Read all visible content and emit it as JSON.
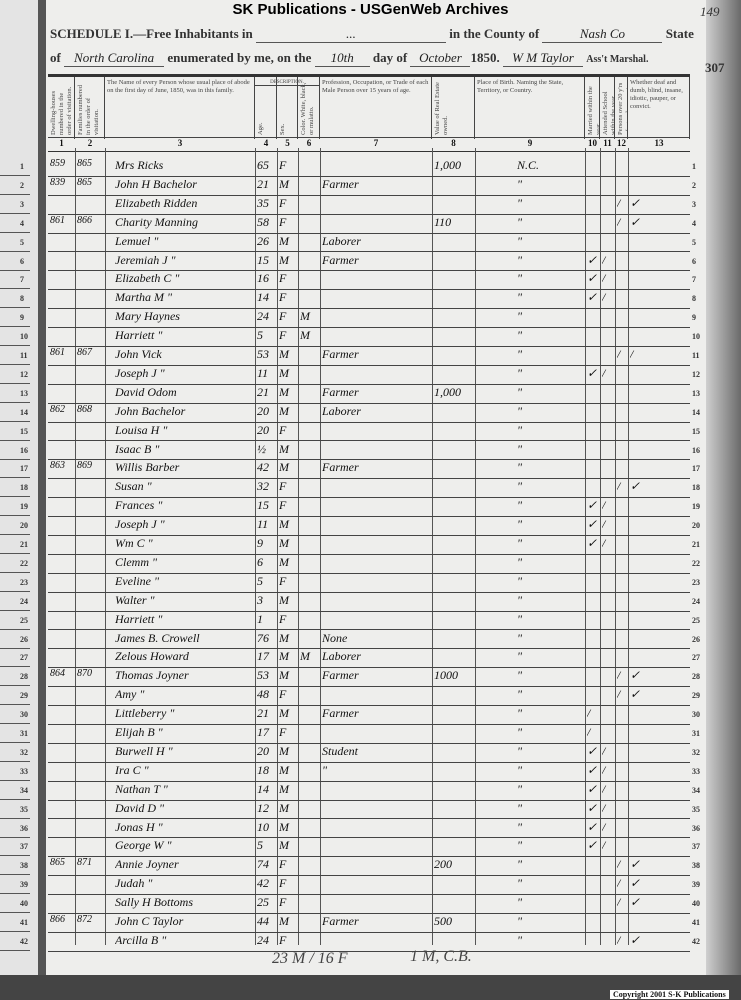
{
  "banner": "SK Publications - USGenWeb Archives",
  "schedule": {
    "title": "SCHEDULE I.—Free Inhabitants in",
    "place": "...",
    "county_label": "in the County of",
    "county": "Nash Co",
    "state_label": "State",
    "of_label": "of",
    "state": "North Carolina",
    "enumerated_label": "enumerated by me, on the",
    "day": "10th",
    "day_label": "day of",
    "month": "October",
    "year": "1850.",
    "marshal": "W M Taylor",
    "marshal_label": "Ass't Marshal.",
    "page_top": "149",
    "page_right": "307"
  },
  "columns": [
    {
      "num": "1",
      "header": "Dwelling-houses numbered in the order of visitation."
    },
    {
      "num": "2",
      "header": "Families numbered in the order of visitation."
    },
    {
      "num": "3",
      "header": "The Name of every Person whose usual place of abode on the first day of June, 1850, was in this family."
    },
    {
      "num": "4",
      "header": "Age."
    },
    {
      "num": "5",
      "header": "Sex."
    },
    {
      "num": "6",
      "header": "Color. White, black, or mulatto."
    },
    {
      "num": "7",
      "header": "Profession, Occupation, or Trade of each Male Person over 15 years of age."
    },
    {
      "num": "8",
      "header": "Value of Real Estate owned."
    },
    {
      "num": "9",
      "header": "Place of Birth. Naming the State, Territory, or Country."
    },
    {
      "num": "10",
      "header": "Married within the year."
    },
    {
      "num": "11",
      "header": "Attended School within the year."
    },
    {
      "num": "12",
      "header": "Persons over 20 y'rs of age who cannot read & write."
    },
    {
      "num": "13",
      "header": "Whether deaf and dumb, blind, insane, idiotic, pauper, or convict."
    }
  ],
  "description_label": "DESCRIPTION.",
  "rows": [
    {
      "n": "1",
      "dw": "859",
      "fam": "865",
      "name": "Mrs Ricks",
      "age": "65",
      "sex": "F",
      "color": "",
      "occ": "",
      "value": "1,000",
      "birth": "N.C.",
      "married": "",
      "school": "",
      "read": "",
      "deaf": ""
    },
    {
      "n": "2",
      "dw": "839",
      "fam": "865",
      "name": "John H Bachelor",
      "age": "21",
      "sex": "M",
      "color": "",
      "occ": "Farmer",
      "value": "",
      "birth": "\"",
      "married": "",
      "school": "",
      "read": "",
      "deaf": ""
    },
    {
      "n": "3",
      "dw": "",
      "fam": "",
      "name": "Elizabeth Ridden",
      "age": "35",
      "sex": "F",
      "color": "",
      "occ": "",
      "value": "",
      "birth": "\"",
      "married": "",
      "school": "",
      "read": "/",
      "deaf": "✓"
    },
    {
      "n": "4",
      "dw": "861",
      "fam": "866",
      "name": "Charity Manning",
      "age": "58",
      "sex": "F",
      "color": "",
      "occ": "",
      "value": "110",
      "birth": "\"",
      "married": "",
      "school": "",
      "read": "/",
      "deaf": "✓"
    },
    {
      "n": "5",
      "dw": "",
      "fam": "",
      "name": "Lemuel   \"",
      "age": "26",
      "sex": "M",
      "color": "",
      "occ": "Laborer",
      "value": "",
      "birth": "\"",
      "married": "",
      "school": "",
      "read": "",
      "deaf": ""
    },
    {
      "n": "6",
      "dw": "",
      "fam": "",
      "name": "Jeremiah J  \"",
      "age": "15",
      "sex": "M",
      "color": "",
      "occ": "Farmer",
      "value": "",
      "birth": "\"",
      "married": "✓",
      "school": "/",
      "read": "",
      "deaf": ""
    },
    {
      "n": "7",
      "dw": "",
      "fam": "",
      "name": "Elizabeth C  \"",
      "age": "16",
      "sex": "F",
      "color": "",
      "occ": "",
      "value": "",
      "birth": "\"",
      "married": "✓",
      "school": "/",
      "read": "",
      "deaf": ""
    },
    {
      "n": "8",
      "dw": "",
      "fam": "",
      "name": "Martha M  \"",
      "age": "14",
      "sex": "F",
      "color": "",
      "occ": "",
      "value": "",
      "birth": "\"",
      "married": "✓",
      "school": "/",
      "read": "",
      "deaf": ""
    },
    {
      "n": "9",
      "dw": "",
      "fam": "",
      "name": "Mary Haynes",
      "age": "24",
      "sex": "F",
      "color": "M",
      "occ": "",
      "value": "",
      "birth": "\"",
      "married": "",
      "school": "",
      "read": "",
      "deaf": ""
    },
    {
      "n": "10",
      "dw": "",
      "fam": "",
      "name": "Harriett  \"",
      "age": "5",
      "sex": "F",
      "color": "M",
      "occ": "",
      "value": "",
      "birth": "\"",
      "married": "",
      "school": "",
      "read": "",
      "deaf": ""
    },
    {
      "n": "11",
      "dw": "861",
      "fam": "867",
      "name": "John Vick",
      "age": "53",
      "sex": "M",
      "color": "",
      "occ": "Farmer",
      "value": "",
      "birth": "\"",
      "married": "",
      "school": "",
      "read": "/",
      "deaf": "/"
    },
    {
      "n": "12",
      "dw": "",
      "fam": "",
      "name": "Joseph J  \"",
      "age": "11",
      "sex": "M",
      "color": "",
      "occ": "",
      "value": "",
      "birth": "\"",
      "married": "✓",
      "school": "/",
      "read": "",
      "deaf": ""
    },
    {
      "n": "13",
      "dw": "",
      "fam": "",
      "name": "David Odom",
      "age": "21",
      "sex": "M",
      "color": "",
      "occ": "Farmer",
      "value": "1,000",
      "birth": "\"",
      "married": "",
      "school": "",
      "read": "",
      "deaf": ""
    },
    {
      "n": "14",
      "dw": "862",
      "fam": "868",
      "name": "John Bachelor",
      "age": "20",
      "sex": "M",
      "color": "",
      "occ": "Laborer",
      "value": "",
      "birth": "\"",
      "married": "",
      "school": "",
      "read": "",
      "deaf": ""
    },
    {
      "n": "15",
      "dw": "",
      "fam": "",
      "name": "Louisa H  \"",
      "age": "20",
      "sex": "F",
      "color": "",
      "occ": "",
      "value": "",
      "birth": "\"",
      "married": "",
      "school": "",
      "read": "",
      "deaf": ""
    },
    {
      "n": "16",
      "dw": "",
      "fam": "",
      "name": "Isaac B  \"",
      "age": "½",
      "sex": "M",
      "color": "",
      "occ": "",
      "value": "",
      "birth": "\"",
      "married": "",
      "school": "",
      "read": "",
      "deaf": ""
    },
    {
      "n": "17",
      "dw": "863",
      "fam": "869",
      "name": "Willis Barber",
      "age": "42",
      "sex": "M",
      "color": "",
      "occ": "Farmer",
      "value": "",
      "birth": "\"",
      "married": "",
      "school": "",
      "read": "",
      "deaf": ""
    },
    {
      "n": "18",
      "dw": "",
      "fam": "",
      "name": "Susan  \"",
      "age": "32",
      "sex": "F",
      "color": "",
      "occ": "",
      "value": "",
      "birth": "\"",
      "married": "",
      "school": "",
      "read": "/",
      "deaf": "✓"
    },
    {
      "n": "19",
      "dw": "",
      "fam": "",
      "name": "Frances  \"",
      "age": "15",
      "sex": "F",
      "color": "",
      "occ": "",
      "value": "",
      "birth": "\"",
      "married": "✓",
      "school": "/",
      "read": "",
      "deaf": ""
    },
    {
      "n": "20",
      "dw": "",
      "fam": "",
      "name": "Joseph J  \"",
      "age": "11",
      "sex": "M",
      "color": "",
      "occ": "",
      "value": "",
      "birth": "\"",
      "married": "✓",
      "school": "/",
      "read": "",
      "deaf": ""
    },
    {
      "n": "21",
      "dw": "",
      "fam": "",
      "name": "Wm C  \"",
      "age": "9",
      "sex": "M",
      "color": "",
      "occ": "",
      "value": "",
      "birth": "\"",
      "married": "✓",
      "school": "/",
      "read": "",
      "deaf": ""
    },
    {
      "n": "22",
      "dw": "",
      "fam": "",
      "name": "Clemm  \"",
      "age": "6",
      "sex": "M",
      "color": "",
      "occ": "",
      "value": "",
      "birth": "\"",
      "married": "",
      "school": "",
      "read": "",
      "deaf": ""
    },
    {
      "n": "23",
      "dw": "",
      "fam": "",
      "name": "Eveline  \"",
      "age": "5",
      "sex": "F",
      "color": "",
      "occ": "",
      "value": "",
      "birth": "\"",
      "married": "",
      "school": "",
      "read": "",
      "deaf": ""
    },
    {
      "n": "24",
      "dw": "",
      "fam": "",
      "name": "Walter  \"",
      "age": "3",
      "sex": "M",
      "color": "",
      "occ": "",
      "value": "",
      "birth": "\"",
      "married": "",
      "school": "",
      "read": "",
      "deaf": ""
    },
    {
      "n": "25",
      "dw": "",
      "fam": "",
      "name": "Harriett  \"",
      "age": "1",
      "sex": "F",
      "color": "",
      "occ": "",
      "value": "",
      "birth": "\"",
      "married": "",
      "school": "",
      "read": "",
      "deaf": ""
    },
    {
      "n": "26",
      "dw": "",
      "fam": "",
      "name": "James B. Crowell",
      "age": "76",
      "sex": "M",
      "color": "",
      "occ": "None",
      "value": "",
      "birth": "\"",
      "married": "",
      "school": "",
      "read": "",
      "deaf": ""
    },
    {
      "n": "27",
      "dw": "",
      "fam": "",
      "name": "Zelous Howard",
      "age": "17",
      "sex": "M",
      "color": "M",
      "occ": "Laborer",
      "value": "",
      "birth": "\"",
      "married": "",
      "school": "",
      "read": "",
      "deaf": ""
    },
    {
      "n": "28",
      "dw": "864",
      "fam": "870",
      "name": "Thomas Joyner",
      "age": "53",
      "sex": "M",
      "color": "",
      "occ": "Farmer",
      "value": "1000",
      "birth": "\"",
      "married": "",
      "school": "",
      "read": "/",
      "deaf": "✓"
    },
    {
      "n": "29",
      "dw": "",
      "fam": "",
      "name": "Amy  \"",
      "age": "48",
      "sex": "F",
      "color": "",
      "occ": "",
      "value": "",
      "birth": "\"",
      "married": "",
      "school": "",
      "read": "/",
      "deaf": "✓"
    },
    {
      "n": "30",
      "dw": "",
      "fam": "",
      "name": "Littleberry  \"",
      "age": "21",
      "sex": "M",
      "color": "",
      "occ": "Farmer",
      "value": "",
      "birth": "\"",
      "married": "/",
      "school": "",
      "read": "",
      "deaf": ""
    },
    {
      "n": "31",
      "dw": "",
      "fam": "",
      "name": "Elijah B  \"",
      "age": "17",
      "sex": "F",
      "color": "",
      "occ": "",
      "value": "",
      "birth": "\"",
      "married": "/",
      "school": "",
      "read": "",
      "deaf": ""
    },
    {
      "n": "32",
      "dw": "",
      "fam": "",
      "name": "Burwell H  \"",
      "age": "20",
      "sex": "M",
      "color": "",
      "occ": "Student",
      "value": "",
      "birth": "\"",
      "married": "✓",
      "school": "/",
      "read": "",
      "deaf": ""
    },
    {
      "n": "33",
      "dw": "",
      "fam": "",
      "name": "Ira C  \"",
      "age": "18",
      "sex": "M",
      "color": "",
      "occ": "\"",
      "value": "",
      "birth": "\"",
      "married": "✓",
      "school": "/",
      "read": "",
      "deaf": ""
    },
    {
      "n": "34",
      "dw": "",
      "fam": "",
      "name": "Nathan T  \"",
      "age": "14",
      "sex": "M",
      "color": "",
      "occ": "",
      "value": "",
      "birth": "\"",
      "married": "✓",
      "school": "/",
      "read": "",
      "deaf": ""
    },
    {
      "n": "35",
      "dw": "",
      "fam": "",
      "name": "David D  \"",
      "age": "12",
      "sex": "M",
      "color": "",
      "occ": "",
      "value": "",
      "birth": "\"",
      "married": "✓",
      "school": "/",
      "read": "",
      "deaf": ""
    },
    {
      "n": "36",
      "dw": "",
      "fam": "",
      "name": "Jonas H  \"",
      "age": "10",
      "sex": "M",
      "color": "",
      "occ": "",
      "value": "",
      "birth": "\"",
      "married": "✓",
      "school": "/",
      "read": "",
      "deaf": ""
    },
    {
      "n": "37",
      "dw": "",
      "fam": "",
      "name": "George W  \"",
      "age": "5",
      "sex": "M",
      "color": "",
      "occ": "",
      "value": "",
      "birth": "\"",
      "married": "✓",
      "school": "/",
      "read": "",
      "deaf": ""
    },
    {
      "n": "38",
      "dw": "865",
      "fam": "871",
      "name": "Annie Joyner",
      "age": "74",
      "sex": "F",
      "color": "",
      "occ": "",
      "value": "200",
      "birth": "\"",
      "married": "",
      "school": "",
      "read": "/",
      "deaf": "✓"
    },
    {
      "n": "39",
      "dw": "",
      "fam": "",
      "name": "Judah  \"",
      "age": "42",
      "sex": "F",
      "color": "",
      "occ": "",
      "value": "",
      "birth": "\"",
      "married": "",
      "school": "",
      "read": "/",
      "deaf": "✓"
    },
    {
      "n": "40",
      "dw": "",
      "fam": "",
      "name": "Sally H Bottoms",
      "age": "25",
      "sex": "F",
      "color": "",
      "occ": "",
      "value": "",
      "birth": "\"",
      "married": "",
      "school": "",
      "read": "/",
      "deaf": "✓"
    },
    {
      "n": "41",
      "dw": "866",
      "fam": "872",
      "name": "John C Taylor",
      "age": "44",
      "sex": "M",
      "color": "",
      "occ": "Farmer",
      "value": "500",
      "birth": "\"",
      "married": "",
      "school": "",
      "read": "",
      "deaf": ""
    },
    {
      "n": "42",
      "dw": "",
      "fam": "",
      "name": "Arcilla B  \"",
      "age": "24",
      "sex": "F",
      "color": "",
      "occ": "",
      "value": "",
      "birth": "\"",
      "married": "",
      "school": "",
      "read": "/",
      "deaf": "✓"
    }
  ],
  "footer": {
    "tally_left": "23 M / 16 F",
    "tally_right": "1 M, C.B."
  },
  "copyright": "Copyright 2001 S-K Publications"
}
